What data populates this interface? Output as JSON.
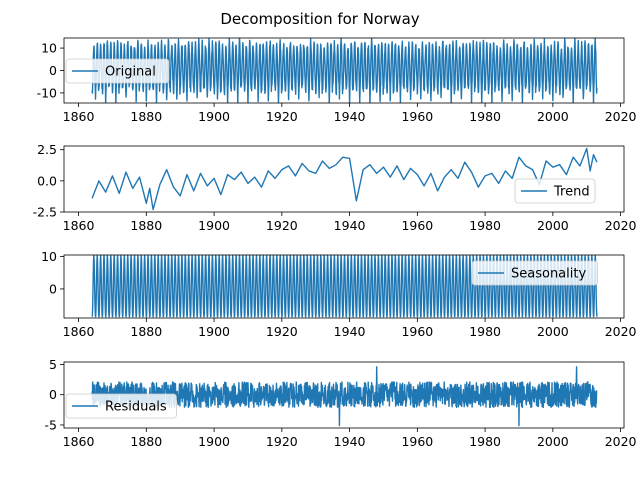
{
  "figure": {
    "title": "Decomposition for Norway"
  },
  "colors": {
    "series": "#1f77b4",
    "axis": "#000000",
    "legend_border": "#cccccc"
  },
  "chart_data": [
    {
      "type": "line",
      "panel": "original",
      "title": "",
      "xlabel": "",
      "ylabel": "",
      "xlim": [
        1855.7,
        2021.0
      ],
      "ylim": [
        -14.5,
        14.5
      ],
      "x_ticks": [
        1860,
        1880,
        1900,
        1920,
        1940,
        1960,
        1980,
        2000,
        2020
      ],
      "y_ticks": [
        -10,
        0,
        10
      ],
      "grid": false,
      "legend": {
        "placement": "upper-left",
        "entries": [
          "Original"
        ]
      },
      "series": [
        {
          "name": "Original",
          "color": "#1f77b4",
          "x_start": 1864,
          "x_end": 2013,
          "frequency": "monthly",
          "values": [
            -8.7,
            -9.1,
            -5.8,
            -0.4,
            4.7,
            9.3,
            11.2,
            10.1,
            6.3,
            1.4,
            -3.9,
            -7.6,
            -13.6,
            -8.4,
            -4.9,
            0.8,
            6.1,
            10.4,
            12.9,
            11.4,
            7.2,
            2.3,
            -4.6,
            -8.9,
            -6.2,
            -7.8,
            -3.1,
            1.2,
            5.8,
            9.7,
            11.8,
            10.6,
            6.7,
            1.9,
            -3.2,
            -6.4
          ],
          "summary": {
            "min": -13.6,
            "max": 13.4,
            "pattern": "annual cycle repeated each year from 1864 to 2013"
          }
        }
      ]
    },
    {
      "type": "line",
      "panel": "trend",
      "title": "",
      "xlabel": "",
      "ylabel": "",
      "xlim": [
        1855.7,
        2021.0
      ],
      "ylim": [
        -2.5,
        2.8
      ],
      "x_ticks": [
        1860,
        1880,
        1900,
        1920,
        1940,
        1960,
        1980,
        2000,
        2020
      ],
      "y_ticks": [
        -2.5,
        0.0,
        2.5
      ],
      "grid": false,
      "legend": {
        "placement": "lower-right",
        "entries": [
          "Trend"
        ]
      },
      "series": [
        {
          "name": "Trend",
          "color": "#1f77b4",
          "x": [
            1864,
            1866,
            1868,
            1870,
            1872,
            1874,
            1876,
            1878,
            1880,
            1881,
            1882,
            1884,
            1886,
            1888,
            1890,
            1892,
            1894,
            1896,
            1898,
            1900,
            1902,
            1904,
            1906,
            1908,
            1910,
            1912,
            1914,
            1916,
            1918,
            1920,
            1922,
            1924,
            1926,
            1928,
            1930,
            1932,
            1934,
            1936,
            1938,
            1940,
            1942,
            1944,
            1946,
            1948,
            1950,
            1952,
            1954,
            1956,
            1958,
            1960,
            1962,
            1964,
            1966,
            1968,
            1970,
            1972,
            1974,
            1976,
            1978,
            1980,
            1982,
            1984,
            1986,
            1988,
            1990,
            1992,
            1994,
            1996,
            1998,
            2000,
            2002,
            2004,
            2006,
            2008,
            2010,
            2011,
            2012,
            2013
          ],
          "values": [
            -1.4,
            0.0,
            -0.9,
            0.4,
            -1.0,
            0.7,
            -0.6,
            0.3,
            -1.8,
            -0.6,
            -2.3,
            -0.3,
            0.9,
            -0.5,
            -1.2,
            0.5,
            -0.8,
            0.6,
            -0.4,
            0.2,
            -1.1,
            0.5,
            0.1,
            0.7,
            -0.2,
            0.3,
            -0.5,
            0.8,
            0.2,
            0.9,
            1.2,
            0.4,
            1.4,
            0.8,
            0.6,
            1.6,
            1.0,
            1.3,
            1.9,
            1.8,
            -1.6,
            0.9,
            1.3,
            0.6,
            1.1,
            0.3,
            1.2,
            0.1,
            1.0,
            0.5,
            -0.4,
            0.6,
            -0.8,
            0.3,
            0.9,
            0.2,
            1.5,
            0.7,
            -0.5,
            0.4,
            0.6,
            -0.2,
            0.8,
            0.2,
            1.9,
            1.2,
            0.9,
            -0.3,
            1.6,
            1.1,
            1.3,
            0.5,
            1.9,
            1.2,
            2.6,
            0.8,
            2.1,
            1.5
          ]
        }
      ]
    },
    {
      "type": "line",
      "panel": "seasonality",
      "title": "",
      "xlabel": "",
      "ylabel": "",
      "xlim": [
        1855.7,
        2021.0
      ],
      "ylim": [
        -9.0,
        10.5
      ],
      "x_ticks": [
        1860,
        1880,
        1900,
        1920,
        1940,
        1960,
        1980,
        2000,
        2020
      ],
      "y_ticks": [
        0,
        10
      ],
      "grid": false,
      "legend": {
        "placement": "upper-right",
        "entries": [
          "Seasonality"
        ]
      },
      "series": [
        {
          "name": "Seasonality",
          "color": "#1f77b4",
          "x_start": 1864,
          "x_end": 2013,
          "frequency": "monthly",
          "values": [
            -8.6,
            -8.3,
            -5.2,
            -0.7,
            4.3,
            8.6,
            10.4,
            9.2,
            5.4,
            0.6,
            -4.1,
            -7.3
          ],
          "summary": {
            "min": -8.6,
            "max": 10.4,
            "pattern": "identical annual cycle every year"
          }
        }
      ]
    },
    {
      "type": "line",
      "panel": "residuals",
      "title": "",
      "xlabel": "",
      "ylabel": "",
      "xlim": [
        1855.7,
        2021.0
      ],
      "ylim": [
        -5.5,
        5.4
      ],
      "x_ticks": [
        1860,
        1880,
        1900,
        1920,
        1940,
        1960,
        1980,
        2000,
        2020
      ],
      "y_ticks": [
        -5,
        0,
        5
      ],
      "grid": false,
      "legend": {
        "placement": "lower-left",
        "entries": [
          "Residuals"
        ]
      },
      "series": [
        {
          "name": "Residuals",
          "color": "#1f77b4",
          "x_start": 1864,
          "x_end": 2013,
          "frequency": "monthly",
          "values": [
            1.5,
            -0.8,
            0.6,
            -1.2,
            0.3,
            2.1,
            -0.4,
            0.9,
            -1.6,
            0.2,
            1.1,
            -2.3
          ],
          "summary": {
            "min": -5.1,
            "max": 4.6,
            "extremes_x": [
              1937,
              1948,
              1990,
              2007
            ],
            "pattern": "noise around zero"
          }
        }
      ]
    }
  ]
}
